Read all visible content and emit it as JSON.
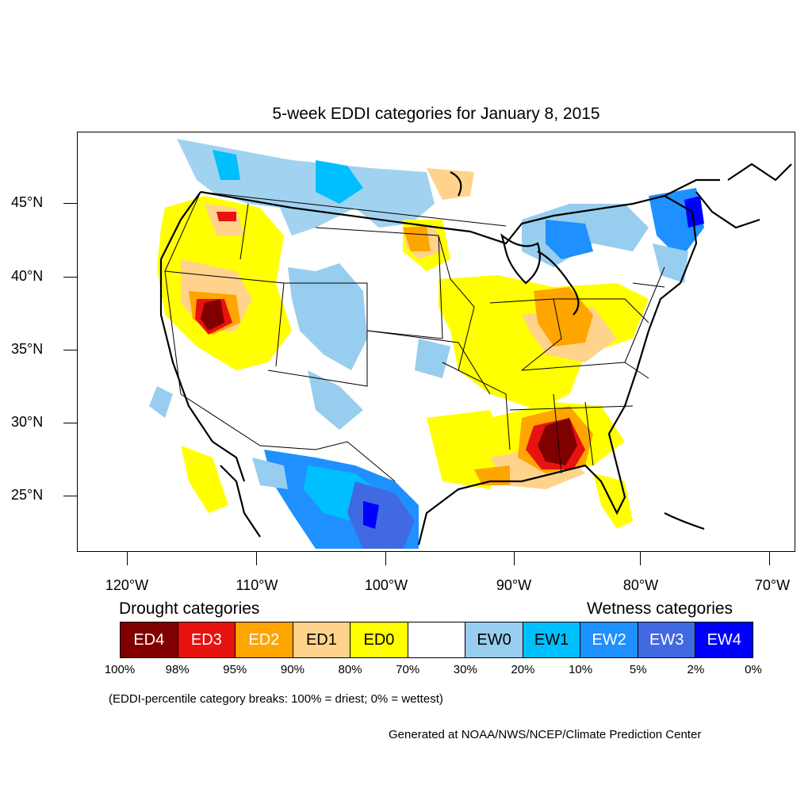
{
  "title": "5-week EDDI categories for January 8, 2015",
  "lat_labels": [
    "45°N",
    "40°N",
    "35°N",
    "30°N",
    "25°N"
  ],
  "lon_labels": [
    "120°W",
    "110°W",
    "100°W",
    "90°W",
    "80°W",
    "70°W"
  ],
  "legend": {
    "drought_heading": "Drought categories",
    "wetness_heading": "Wetness categories",
    "categories": [
      {
        "label": "ED4",
        "color": "#800000",
        "text_color": "#ffffff"
      },
      {
        "label": "ED3",
        "color": "#e8120f",
        "text_color": "#ffffff"
      },
      {
        "label": "ED2",
        "color": "#ffa500",
        "text_color": "#ffffff"
      },
      {
        "label": "ED1",
        "color": "#ffd38c",
        "text_color": "#000000"
      },
      {
        "label": "ED0",
        "color": "#ffff00",
        "text_color": "#000000"
      },
      {
        "label": "",
        "color": "#ffffff",
        "text_color": "#000000"
      },
      {
        "label": "EW0",
        "color": "#97cdee",
        "text_color": "#000000"
      },
      {
        "label": "EW1",
        "color": "#00bfff",
        "text_color": "#000000"
      },
      {
        "label": "EW2",
        "color": "#1e90ff",
        "text_color": "#ffffff"
      },
      {
        "label": "EW3",
        "color": "#4169e1",
        "text_color": "#ffffff"
      },
      {
        "label": "EW4",
        "color": "#0000ff",
        "text_color": "#ffffff"
      }
    ],
    "percentiles": [
      "100%",
      "98%",
      "95%",
      "90%",
      "80%",
      "70%",
      "30%",
      "20%",
      "10%",
      "5%",
      "2%",
      "0%"
    ]
  },
  "note": "(EDDI-percentile category breaks: 100% = driest; 0% = wettest)",
  "credit": "Generated at NOAA/NWS/NCEP/Climate Prediction Center"
}
